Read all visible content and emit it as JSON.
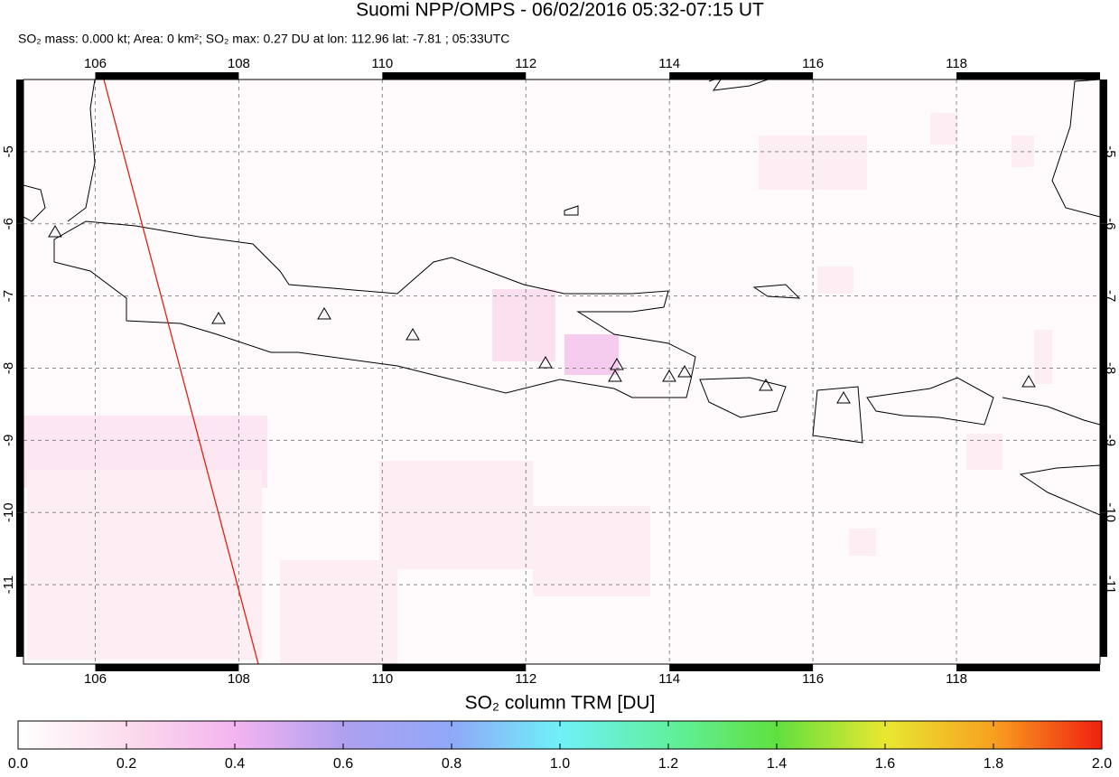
{
  "title": "Suomi NPP/OMPS - 06/02/2016 05:32-07:15 UT",
  "subtitle": "SO₂ mass: 0.000 kt; Area: 0 km²; SO₂ max: 0.27 DU at lon: 112.96 lat: -7.81 ; 05:33UTC",
  "map": {
    "xlim": [
      105,
      120
    ],
    "ylim": [
      -12.1,
      -4
    ],
    "xticks": [
      106,
      108,
      110,
      112,
      114,
      116,
      118
    ],
    "yticks": [
      -11,
      -10,
      -9,
      -8,
      -7,
      -6,
      -5
    ]
  },
  "colorbar": {
    "label": "SO₂ column TRM [DU]",
    "lim": [
      0,
      2
    ],
    "ticks": [
      {
        "value": 0,
        "label": "0.0"
      },
      {
        "value": 0.2,
        "label": "0.2"
      },
      {
        "value": 0.4,
        "label": "0.4"
      },
      {
        "value": 0.6,
        "label": "0.6"
      },
      {
        "value": 0.8,
        "label": "0.8"
      },
      {
        "value": 1,
        "label": "1.0"
      },
      {
        "value": 1.2,
        "label": "1.2"
      },
      {
        "value": 1.4,
        "label": "1.4"
      },
      {
        "value": 1.6,
        "label": "1.6"
      },
      {
        "value": 1.8,
        "label": "1.8"
      },
      {
        "value": 2,
        "label": "2.0"
      }
    ]
  }
}
